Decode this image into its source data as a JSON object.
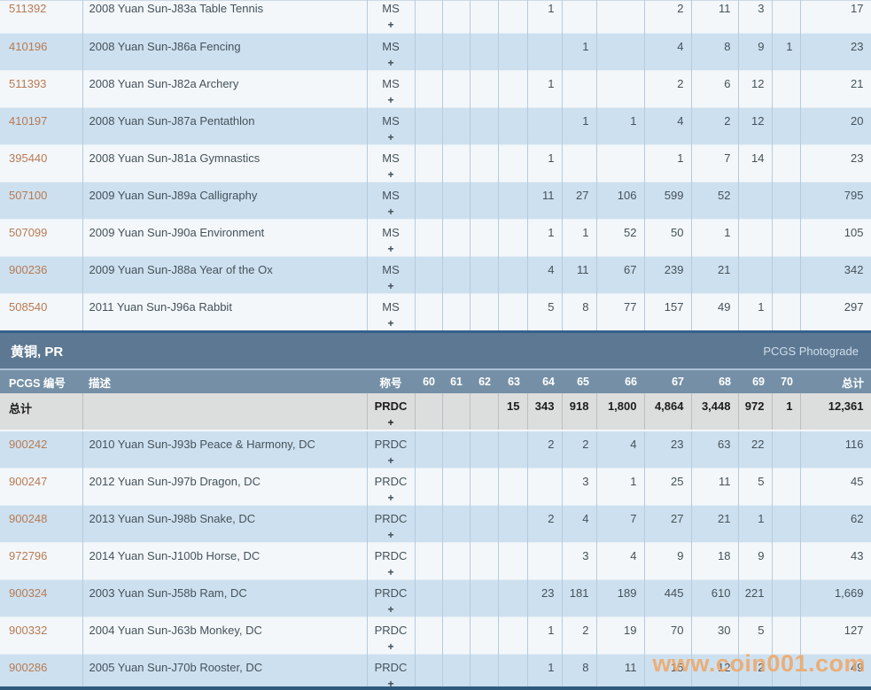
{
  "grades": [
    "60",
    "61",
    "62",
    "63",
    "64",
    "65",
    "66",
    "67",
    "68",
    "69",
    "70"
  ],
  "columns": {
    "id": "PCGS 编号",
    "description": "描述",
    "designation": "称号",
    "total": "总计"
  },
  "ms_table": {
    "rows": [
      {
        "id": "511392",
        "description": "2008 Yuan Sun-J83a Table Tennis",
        "designation": "MS",
        "plus": "+",
        "counts": [
          "",
          "",
          "",
          "",
          "1",
          "",
          "",
          "2",
          "11",
          "3",
          ""
        ],
        "total": "17"
      },
      {
        "id": "410196",
        "description": "2008 Yuan Sun-J86a Fencing",
        "designation": "MS",
        "plus": "+",
        "counts": [
          "",
          "",
          "",
          "",
          "",
          "1",
          "",
          "4",
          "8",
          "9",
          "1"
        ],
        "total": "23"
      },
      {
        "id": "511393",
        "description": "2008 Yuan Sun-J82a Archery",
        "designation": "MS",
        "plus": "+",
        "counts": [
          "",
          "",
          "",
          "",
          "1",
          "",
          "",
          "2",
          "6",
          "12",
          ""
        ],
        "total": "21"
      },
      {
        "id": "410197",
        "description": "2008 Yuan Sun-J87a Pentathlon",
        "designation": "MS",
        "plus": "+",
        "counts": [
          "",
          "",
          "",
          "",
          "",
          "1",
          "1",
          "4",
          "2",
          "12",
          ""
        ],
        "total": "20"
      },
      {
        "id": "395440",
        "description": "2008 Yuan Sun-J81a Gymnastics",
        "designation": "MS",
        "plus": "+",
        "counts": [
          "",
          "",
          "",
          "",
          "1",
          "",
          "",
          "1",
          "7",
          "14",
          ""
        ],
        "total": "23"
      },
      {
        "id": "507100",
        "description": "2009 Yuan Sun-J89a Calligraphy",
        "designation": "MS",
        "plus": "+",
        "counts": [
          "",
          "",
          "",
          "",
          "11",
          "27",
          "106",
          "599",
          "52",
          "",
          ""
        ],
        "total": "795"
      },
      {
        "id": "507099",
        "description": "2009 Yuan Sun-J90a Environment",
        "designation": "MS",
        "plus": "+",
        "counts": [
          "",
          "",
          "",
          "",
          "1",
          "1",
          "52",
          "50",
          "1",
          "",
          ""
        ],
        "total": "105"
      },
      {
        "id": "900236",
        "description": "2009 Yuan Sun-J88a Year of the Ox",
        "designation": "MS",
        "plus": "+",
        "counts": [
          "",
          "",
          "",
          "",
          "4",
          "11",
          "67",
          "239",
          "21",
          "",
          ""
        ],
        "total": "342"
      },
      {
        "id": "508540",
        "description": "2011 Yuan Sun-J96a Rabbit",
        "designation": "MS",
        "plus": "+",
        "counts": [
          "",
          "",
          "",
          "",
          "5",
          "8",
          "77",
          "157",
          "49",
          "1",
          ""
        ],
        "total": "297"
      }
    ]
  },
  "pr_section": {
    "title": "黄铜, PR",
    "photograde_label": "PCGS Photograde",
    "total_row": {
      "label": "总计",
      "designation": "PRDC",
      "plus": "+",
      "counts": [
        "",
        "",
        "",
        "15",
        "343",
        "918",
        "1,800",
        "4,864",
        "3,448",
        "972",
        "1"
      ],
      "total": "12,361"
    },
    "rows": [
      {
        "id": "900242",
        "description": "2010 Yuan Sun-J93b Peace & Harmony, DC",
        "designation": "PRDC",
        "plus": "+",
        "counts": [
          "",
          "",
          "",
          "",
          "2",
          "2",
          "4",
          "23",
          "63",
          "22",
          ""
        ],
        "total": "116"
      },
      {
        "id": "900247",
        "description": "2012 Yuan Sun-J97b Dragon, DC",
        "designation": "PRDC",
        "plus": "+",
        "counts": [
          "",
          "",
          "",
          "",
          "",
          "3",
          "1",
          "25",
          "11",
          "5",
          ""
        ],
        "total": "45"
      },
      {
        "id": "900248",
        "description": "2013 Yuan Sun-J98b Snake, DC",
        "designation": "PRDC",
        "plus": "+",
        "counts": [
          "",
          "",
          "",
          "",
          "2",
          "4",
          "7",
          "27",
          "21",
          "1",
          ""
        ],
        "total": "62"
      },
      {
        "id": "972796",
        "description": "2014 Yuan Sun-J100b Horse, DC",
        "designation": "PRDC",
        "plus": "+",
        "counts": [
          "",
          "",
          "",
          "",
          "",
          "3",
          "4",
          "9",
          "18",
          "9",
          ""
        ],
        "total": "43"
      },
      {
        "id": "900324",
        "description": "2003 Yuan Sun-J58b Ram, DC",
        "designation": "PRDC",
        "plus": "+",
        "counts": [
          "",
          "",
          "",
          "",
          "23",
          "181",
          "189",
          "445",
          "610",
          "221",
          ""
        ],
        "total": "1,669"
      },
      {
        "id": "900332",
        "description": "2004 Yuan Sun-J63b Monkey, DC",
        "designation": "PRDC",
        "plus": "+",
        "counts": [
          "",
          "",
          "",
          "",
          "1",
          "2",
          "19",
          "70",
          "30",
          "5",
          ""
        ],
        "total": "127"
      },
      {
        "id": "900286",
        "description": "2005 Yuan Sun-J70b Rooster, DC",
        "designation": "PRDC",
        "plus": "+",
        "counts": [
          "",
          "",
          "",
          "",
          "1",
          "8",
          "11",
          "15",
          "12",
          "2",
          ""
        ],
        "total": "49"
      }
    ]
  },
  "watermark": "www.coin001.com",
  "colors": {
    "accent_link": "#b87a52",
    "section_bar": "#5c7893",
    "header_row": "#7590a6",
    "row_blue": "#cde0ef",
    "row_light": "#f3f7fa",
    "grid_line": "#b6cbdc",
    "total_row_bg": "#dcdddd",
    "text": "#45525a",
    "dark_border": "#35618a",
    "bottom_bar": "#2e5a7e",
    "watermark": "#f2a45f"
  }
}
